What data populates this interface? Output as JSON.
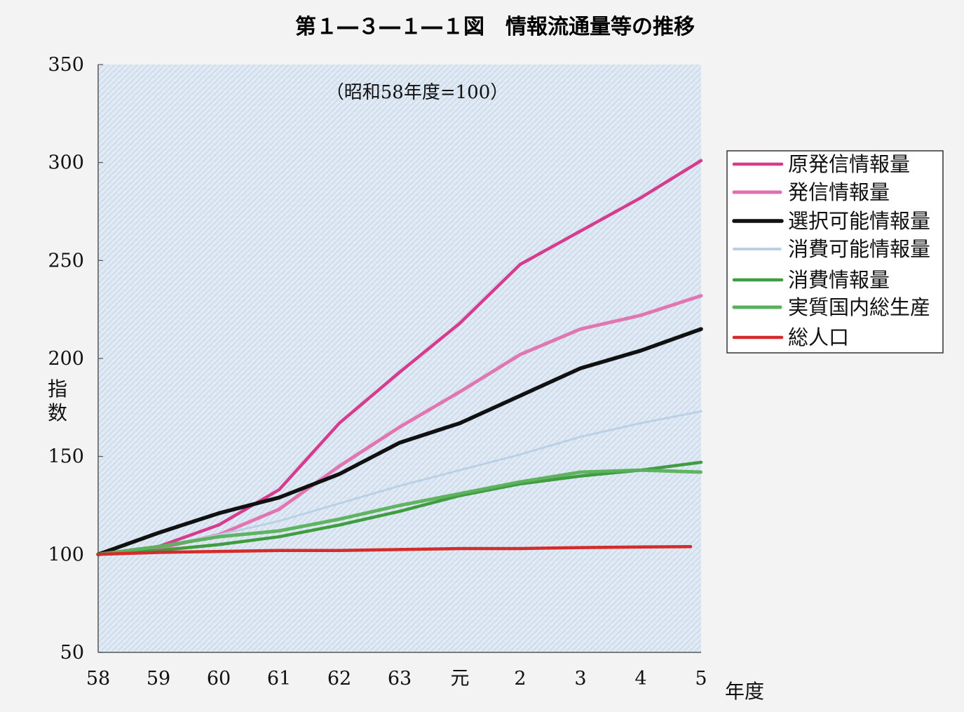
{
  "chart_data": {
    "type": "line",
    "title": "第１―３―１―１図　情報流通量等の推移",
    "note": "（昭和58年度=100）",
    "ylabel": "指数",
    "xlabel": "年度",
    "ylim": [
      50,
      350
    ],
    "yticks": [
      "350",
      "300",
      "250",
      "200",
      "150",
      "100",
      "50"
    ],
    "categories": [
      "58",
      "59",
      "60",
      "61",
      "62",
      "63",
      "元",
      "2",
      "3",
      "4",
      "5"
    ],
    "legend_position": "right",
    "series": [
      {
        "name": "原発信情報量",
        "color": "#d63b8e",
        "style": "solid",
        "values": [
          100,
          104,
          115,
          133,
          167,
          193,
          218,
          248,
          265,
          282,
          301
        ]
      },
      {
        "name": "発信情報量",
        "color": "#e070ad",
        "style": "hatched",
        "values": [
          100,
          103,
          110,
          123,
          145,
          165,
          183,
          202,
          215,
          222,
          232
        ]
      },
      {
        "name": "選択可能情報量",
        "color": "#111111",
        "style": "solid",
        "values": [
          100,
          111,
          121,
          129,
          141,
          157,
          167,
          181,
          195,
          204,
          215
        ]
      },
      {
        "name": "消費可能情報量",
        "color": "#b9cfe6",
        "style": "dotted",
        "values": [
          100,
          104,
          110,
          117,
          126,
          135,
          143,
          151,
          160,
          167,
          173
        ]
      },
      {
        "name": "消費情報量",
        "color": "#3f9d3f",
        "style": "solid",
        "values": [
          100,
          102,
          105,
          109,
          115,
          122,
          130,
          136,
          140,
          143,
          147
        ]
      },
      {
        "name": "実質国内総生産",
        "color": "#58b058",
        "style": "hatched",
        "values": [
          100,
          104,
          109,
          112,
          118,
          125,
          131,
          137,
          142,
          143,
          142
        ]
      },
      {
        "name": "総人口",
        "color": "#d62b2b",
        "style": "solid",
        "values": [
          100,
          101,
          101.5,
          102,
          102,
          102.5,
          103,
          103,
          103.5,
          103.8,
          104
        ]
      }
    ]
  }
}
